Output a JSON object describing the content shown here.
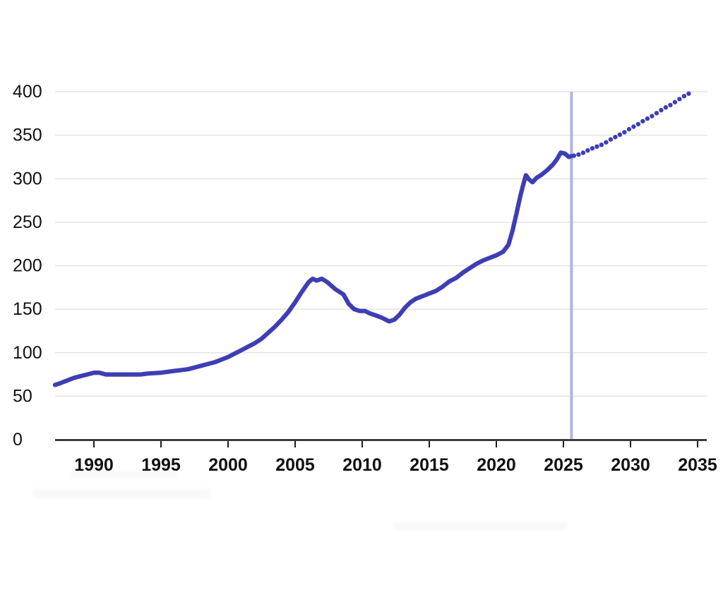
{
  "figure": {
    "background": "#ffffff",
    "title": ""
  },
  "chart_data": {
    "type": "line",
    "title": "",
    "subtitle": "",
    "xlabel": "",
    "ylabel": "",
    "legend": null,
    "grid": "horizontal-light",
    "xlim": [
      1987.1,
      2035.8
    ],
    "ylim": [
      0,
      400
    ],
    "x_ticks": [
      1990,
      1995,
      2000,
      2005,
      2010,
      2015,
      2020,
      2025,
      2030,
      2035
    ],
    "x_tick_labels": [
      "1990",
      "1995",
      "2000",
      "2005",
      "2010",
      "2015",
      "2020",
      "2025",
      "2030",
      "2035"
    ],
    "y_ticks": [
      0,
      50,
      100,
      150,
      200,
      250,
      300,
      350,
      400
    ],
    "y_tick_labels": [
      "0",
      "50",
      "100",
      "150",
      "200",
      "250",
      "300",
      "350",
      "400"
    ],
    "annotations": {
      "forecast_divider_x": 2025.6
    },
    "colors": {
      "series": "#3e3eb4",
      "divider": "#b3b3de",
      "grid": "#e4e4e4",
      "axis": "#1a1a1a",
      "tick_label": "#111111",
      "background": "#ffffff"
    },
    "series": [
      {
        "name": "historical",
        "line_style": "solid",
        "points": [
          [
            1987.1,
            63
          ],
          [
            1987.5,
            65
          ],
          [
            1988,
            68
          ],
          [
            1988.5,
            71
          ],
          [
            1989,
            73
          ],
          [
            1989.5,
            75
          ],
          [
            1990,
            77
          ],
          [
            1990.4,
            77
          ],
          [
            1990.9,
            75
          ],
          [
            1991.5,
            75
          ],
          [
            1992.5,
            75
          ],
          [
            1993.5,
            75
          ],
          [
            1994,
            76
          ],
          [
            1995,
            77
          ],
          [
            1996,
            79
          ],
          [
            1997,
            81
          ],
          [
            1998,
            85
          ],
          [
            1998.5,
            87
          ],
          [
            1999,
            89
          ],
          [
            1999.5,
            92
          ],
          [
            2000,
            95
          ],
          [
            2000.5,
            99
          ],
          [
            2001,
            103
          ],
          [
            2001.5,
            107
          ],
          [
            2002,
            111
          ],
          [
            2002.5,
            116
          ],
          [
            2003,
            123
          ],
          [
            2003.5,
            130
          ],
          [
            2004,
            138
          ],
          [
            2004.5,
            147
          ],
          [
            2005,
            158
          ],
          [
            2005.5,
            170
          ],
          [
            2006,
            181
          ],
          [
            2006.3,
            185
          ],
          [
            2006.6,
            183
          ],
          [
            2007,
            185
          ],
          [
            2007.4,
            181
          ],
          [
            2008,
            173
          ],
          [
            2008.6,
            167
          ],
          [
            2009,
            156
          ],
          [
            2009.4,
            150
          ],
          [
            2009.8,
            148
          ],
          [
            2010.2,
            148
          ],
          [
            2010.6,
            145
          ],
          [
            2011,
            143
          ],
          [
            2011.5,
            140
          ],
          [
            2012,
            136
          ],
          [
            2012.4,
            138
          ],
          [
            2012.8,
            144
          ],
          [
            2013.2,
            152
          ],
          [
            2013.6,
            158
          ],
          [
            2014,
            162
          ],
          [
            2014.5,
            165
          ],
          [
            2015,
            168
          ],
          [
            2015.5,
            171
          ],
          [
            2016,
            176
          ],
          [
            2016.5,
            182
          ],
          [
            2017,
            186
          ],
          [
            2017.5,
            192
          ],
          [
            2018,
            197
          ],
          [
            2018.5,
            202
          ],
          [
            2019,
            206
          ],
          [
            2019.5,
            209
          ],
          [
            2020,
            212
          ],
          [
            2020.5,
            216
          ],
          [
            2020.9,
            224
          ],
          [
            2021.2,
            240
          ],
          [
            2021.5,
            260
          ],
          [
            2021.8,
            281
          ],
          [
            2022,
            293
          ],
          [
            2022.2,
            304
          ],
          [
            2022.45,
            299
          ],
          [
            2022.7,
            296
          ],
          [
            2023,
            301
          ],
          [
            2023.4,
            305
          ],
          [
            2023.8,
            310
          ],
          [
            2024.2,
            316
          ],
          [
            2024.5,
            322
          ],
          [
            2024.8,
            330
          ],
          [
            2025.1,
            329
          ],
          [
            2025.4,
            325
          ],
          [
            2025.6,
            326
          ]
        ]
      },
      {
        "name": "forecast",
        "line_style": "dotted",
        "points": [
          [
            2025.6,
            326
          ],
          [
            2026,
            327
          ],
          [
            2026.5,
            330
          ],
          [
            2027,
            334
          ],
          [
            2027.5,
            337
          ],
          [
            2028,
            340
          ],
          [
            2028.5,
            345
          ],
          [
            2029,
            349
          ],
          [
            2029.5,
            353
          ],
          [
            2030,
            358
          ],
          [
            2030.5,
            362
          ],
          [
            2031,
            367
          ],
          [
            2031.5,
            371
          ],
          [
            2032,
            376
          ],
          [
            2032.5,
            381
          ],
          [
            2033,
            385
          ],
          [
            2033.5,
            390
          ],
          [
            2034,
            395
          ],
          [
            2034.6,
            400
          ]
        ]
      }
    ]
  }
}
